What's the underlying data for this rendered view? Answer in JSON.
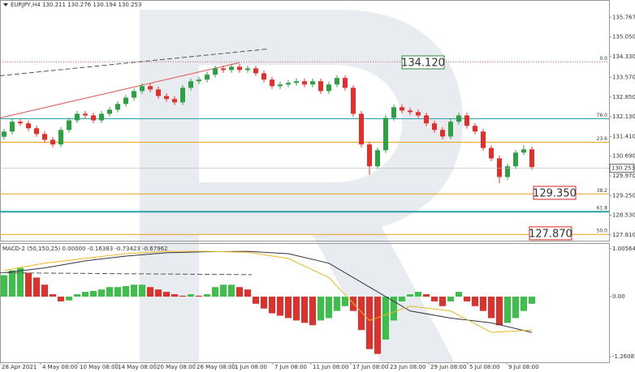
{
  "chart_data": [
    {
      "type": "candlestick",
      "title": "EURJPY,H4  130.211 130.276 130.194 130.253",
      "up_color": "#2ea043",
      "down_color": "#e0302b",
      "open": [
        131.4,
        131.59,
        131.95,
        131.89,
        131.71,
        131.5,
        131.29,
        131.12,
        131.65,
        132.0,
        132.24,
        132.18,
        132.0,
        132.24,
        132.39,
        132.6,
        132.83,
        133.07,
        133.25,
        133.13,
        132.89,
        132.78,
        132.66,
        133.19,
        133.43,
        133.49,
        133.67,
        133.9,
        133.84,
        133.96,
        133.84,
        133.9,
        133.72,
        133.49,
        133.25,
        133.31,
        133.37,
        133.43,
        133.31,
        133.43,
        133.07,
        133.31,
        133.55,
        133.19,
        132.24,
        131.12,
        130.32,
        130.91,
        132.09,
        132.48,
        132.36,
        132.3,
        132.18,
        131.89,
        131.65,
        131.41,
        131.95,
        132.18,
        131.8,
        131.59,
        130.99,
        130.61,
        129.93,
        130.32,
        130.82,
        130.94
      ],
      "high": [
        131.69,
        132.05,
        132.05,
        131.99,
        131.81,
        131.6,
        131.39,
        131.75,
        132.1,
        132.34,
        132.34,
        132.28,
        132.34,
        132.49,
        132.7,
        132.93,
        133.17,
        133.35,
        133.35,
        133.23,
        132.99,
        132.88,
        133.29,
        133.53,
        133.59,
        133.77,
        134.0,
        134.0,
        134.06,
        134.06,
        134.0,
        134.0,
        133.82,
        133.59,
        133.41,
        133.47,
        133.53,
        133.53,
        133.53,
        133.53,
        133.41,
        133.65,
        133.65,
        133.29,
        132.34,
        131.22,
        131.01,
        132.19,
        132.58,
        132.58,
        132.46,
        132.4,
        132.28,
        131.99,
        131.75,
        132.05,
        132.28,
        132.28,
        131.9,
        131.69,
        131.09,
        130.71,
        130.42,
        130.92,
        131.1,
        131.04
      ],
      "low": [
        131.3,
        131.49,
        131.79,
        131.61,
        131.4,
        131.19,
        131.02,
        131.02,
        131.55,
        131.9,
        132.08,
        131.9,
        131.9,
        132.14,
        132.29,
        132.5,
        132.73,
        132.97,
        133.03,
        132.79,
        132.68,
        132.56,
        132.56,
        133.09,
        133.33,
        133.39,
        133.57,
        133.74,
        133.74,
        133.74,
        133.74,
        133.62,
        133.39,
        133.15,
        133.15,
        133.21,
        133.27,
        133.21,
        133.21,
        132.97,
        132.97,
        133.21,
        133.09,
        132.14,
        131.02,
        130.02,
        130.22,
        130.81,
        131.99,
        132.26,
        132.2,
        132.08,
        131.79,
        131.55,
        131.31,
        131.31,
        131.85,
        131.7,
        131.49,
        130.89,
        130.51,
        129.7,
        129.83,
        130.22,
        130.72,
        130.19
      ],
      "close": [
        131.59,
        131.95,
        131.89,
        131.71,
        131.5,
        131.29,
        131.12,
        131.65,
        132.0,
        132.24,
        132.18,
        132.0,
        132.24,
        132.39,
        132.6,
        132.83,
        133.07,
        133.25,
        133.13,
        132.89,
        132.78,
        132.66,
        133.19,
        133.43,
        133.49,
        133.67,
        133.9,
        133.84,
        133.96,
        133.84,
        133.9,
        133.72,
        133.49,
        133.25,
        133.31,
        133.37,
        133.43,
        133.31,
        133.43,
        133.07,
        133.31,
        133.55,
        133.19,
        132.24,
        131.12,
        130.32,
        130.91,
        132.09,
        132.48,
        132.36,
        132.3,
        132.18,
        131.89,
        131.65,
        131.41,
        131.95,
        132.18,
        131.8,
        131.59,
        130.99,
        130.61,
        129.93,
        130.32,
        130.82,
        130.94,
        130.29
      ],
      "xlim": [
        0,
        75
      ],
      "ylim": [
        127.6,
        136.4
      ],
      "yticks": [
        135.767,
        {
          "value": 135.05,
          "label": "135.050"
        },
        {
          "value": 134.33,
          "label": "134.330"
        },
        {
          "value": 133.57,
          "label": "133.570"
        },
        {
          "value": 132.85,
          "label": "132.850"
        },
        {
          "value": 132.13,
          "label": "132.130"
        },
        {
          "value": 131.41,
          "label": "131.410"
        },
        {
          "value": 130.69,
          "label": "130.690"
        },
        {
          "value": 129.97,
          "label": "129.970"
        },
        {
          "value": 129.25,
          "label": "129.250"
        },
        {
          "value": 128.53,
          "label": "128.530"
        },
        {
          "value": 127.81,
          "label": "127.810"
        }
      ],
      "last_price": 130.253,
      "levels": [
        {
          "value": 134.14,
          "label": "0.0",
          "color": "#e05050"
        },
        {
          "value": 132.06,
          "label": "76.0",
          "color": "#2aa0a8"
        },
        {
          "value": 131.2,
          "label": "23.6",
          "color": "#e8a020"
        },
        {
          "value": 129.31,
          "label": "38.2",
          "color": "#e8a020"
        },
        {
          "value": 128.66,
          "label": "61.8",
          "color": "#2aa0a8"
        },
        {
          "value": 127.83,
          "label": "50.0",
          "color": "#e8a020"
        }
      ],
      "targets": [
        {
          "value": 134.12,
          "label": "134.120",
          "color": "#2e8b3e"
        },
        {
          "value": 129.35,
          "label": "129.350",
          "color": "#e02020"
        },
        {
          "value": 127.87,
          "label": "127.870",
          "color": "#e02020"
        }
      ],
      "trendlines": [
        {
          "x": [
            0,
            33
          ],
          "values": [
            133.63,
            134.61
          ],
          "color": "#555555"
        },
        {
          "x": [
            0,
            29.5
          ],
          "values": [
            132.09,
            134.11
          ],
          "color": "#e05050"
        }
      ]
    },
    {
      "type": "macd",
      "title": "MACD-2 (50,150,25) 0.00000 -0.16383 -0.73423 -0.67962",
      "up_color": "#3cc04a",
      "down_color": "#e0302b",
      "values": [
        0.45,
        0.55,
        0.6,
        0.5,
        0.4,
        0.25,
        0.05,
        -0.1,
        -0.08,
        0.05,
        0.1,
        0.12,
        0.15,
        0.2,
        0.2,
        0.22,
        0.25,
        0.25,
        0.2,
        0.15,
        0.1,
        0.05,
        0.02,
        0.05,
        0.02,
        0.05,
        0.2,
        0.25,
        0.25,
        0.2,
        0.15,
        -0.15,
        -0.25,
        -0.35,
        -0.4,
        -0.45,
        -0.5,
        -0.55,
        -0.6,
        -0.5,
        -0.45,
        -0.3,
        -0.2,
        -0.3,
        -0.7,
        -1.1,
        -1.2,
        -0.9,
        -0.5,
        -0.1,
        0.05,
        0.1,
        0.05,
        -0.1,
        -0.2,
        -0.1,
        0.1,
        -0.1,
        -0.2,
        -0.3,
        -0.45,
        -0.6,
        -0.55,
        -0.45,
        -0.3,
        -0.15
      ],
      "lines": [
        {
          "color": "#333344",
          "x": [
            0,
            5,
            10,
            15,
            20,
            25,
            30,
            35,
            40,
            45,
            50,
            55,
            60,
            65
          ],
          "values": [
            0.5,
            0.6,
            0.75,
            0.85,
            0.92,
            0.94,
            0.95,
            0.9,
            0.7,
            0.2,
            -0.3,
            -0.45,
            -0.55,
            -0.75
          ]
        },
        {
          "color": "#e8b820",
          "x": [
            0,
            5,
            10,
            15,
            20,
            25,
            30,
            35,
            40,
            45,
            50,
            55,
            60,
            65
          ],
          "values": [
            0.55,
            0.7,
            0.8,
            0.9,
            0.95,
            0.95,
            0.93,
            0.8,
            0.4,
            -0.5,
            -0.2,
            -0.3,
            -0.75,
            -0.7
          ]
        }
      ],
      "trendlines": [
        {
          "x": [
            0,
            31
          ],
          "values": [
            0.5,
            0.46
          ],
          "color": "#555555"
        }
      ],
      "xlim": [
        0,
        75
      ],
      "ylim": [
        -1.376,
        1.121
      ],
      "yticks": [
        1.00564,
        {
          "value": 0,
          "label": "0.00"
        },
        -1.26087
      ],
      "xticks": [
        {
          "value": 0,
          "label": "28 Apr 2021"
        },
        {
          "value": 5,
          "label": "4 May 08:00"
        },
        {
          "value": 9.6,
          "label": "10 May 08:00"
        },
        {
          "value": 14.3,
          "label": "14 May 08:00"
        },
        {
          "value": 19.1,
          "label": "20 May 08:00"
        },
        {
          "value": 24,
          "label": "26 May 08:00"
        },
        {
          "value": 28.7,
          "label": "1 Jun 08:00"
        },
        {
          "value": 33.6,
          "label": "7 Jun 08:00"
        },
        {
          "value": 38.3,
          "label": "11 Jun 08:00"
        },
        {
          "value": 43.2,
          "label": "17 Jun 08:00"
        },
        {
          "value": 47.8,
          "label": "23 Jun 08:00"
        },
        {
          "value": 52.8,
          "label": "29 Jun 08:00"
        },
        {
          "value": 57.6,
          "label": "5 Jul 08:00"
        },
        {
          "value": 62.4,
          "label": "9 Jul 08:00"
        }
      ]
    }
  ]
}
